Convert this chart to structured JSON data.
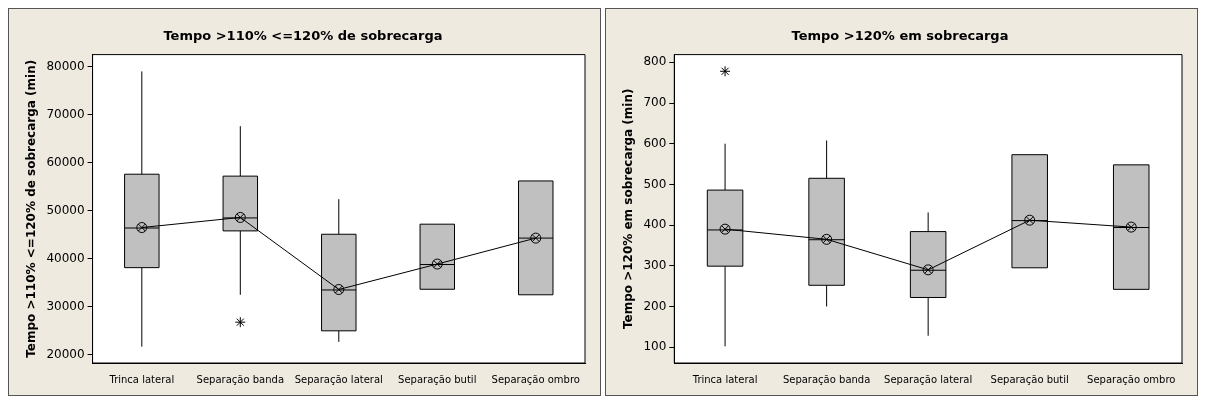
{
  "chart_data": [
    {
      "type": "box",
      "title": "Tempo >110% <=120% de sobrecarga",
      "ylabel": "Tempo >110% <=120% de sobrecarga (min)",
      "categories": [
        "Trinca lateral",
        "Separação banda",
        "Separação lateral",
        "Separação butil",
        "Separação ombro"
      ],
      "ylim": [
        18300,
        82500
      ],
      "yticks": [
        20000,
        30000,
        40000,
        50000,
        60000,
        70000,
        80000
      ],
      "series": [
        {
          "color": "#c0c0c0",
          "boxes": [
            {
              "low": 21700,
              "q1": 38150,
              "median": 46400,
              "q3": 57600,
              "high": 79000
            },
            {
              "low": 32500,
              "q1": 45800,
              "median": 48500,
              "q3": 57200,
              "high": 67600,
              "outliers": [
                26800
              ]
            },
            {
              "low": 22700,
              "q1": 25000,
              "median": 33500,
              "q3": 45100,
              "high": 52400
            },
            {
              "low": 33650,
              "q1": 33650,
              "median": 38800,
              "q3": 47200,
              "high": 47200
            },
            {
              "low": 32500,
              "q1": 32500,
              "median": 44300,
              "q3": 56200,
              "high": 56200
            }
          ]
        },
        {
          "type": "line",
          "color": "#000000",
          "marker": "circle",
          "values": [
            46500,
            48600,
            33600,
            38900,
            44300
          ]
        }
      ]
    },
    {
      "type": "box",
      "title": "Tempo >120% em sobrecarga",
      "ylabel": "Tempo >120% em sobrecarga (min)",
      "categories": [
        "Trinca lateral",
        "Separação banda",
        "Separação lateral",
        "Separação butil",
        "Separação ombro"
      ],
      "ylim": [
        61,
        819
      ],
      "yticks": [
        100,
        200,
        300,
        400,
        500,
        600,
        700,
        800
      ],
      "series": [
        {
          "color": "#c0c0c0",
          "boxes": [
            {
              "low": 102,
              "q1": 299,
              "median": 388,
              "q3": 486,
              "high": 600,
              "outliers": [
                778
              ]
            },
            {
              "low": 200,
              "q1": 252,
              "median": 364,
              "q3": 515,
              "high": 608
            },
            {
              "low": 128,
              "q1": 222,
              "median": 289,
              "q3": 384,
              "high": 431
            },
            {
              "low": 295,
              "q1": 295,
              "median": 411,
              "q3": 573,
              "high": 573
            },
            {
              "low": 242,
              "q1": 242,
              "median": 394,
              "q3": 548,
              "high": 548
            }
          ]
        },
        {
          "type": "line",
          "color": "#000000",
          "marker": "circle",
          "values": [
            390,
            365,
            290,
            412,
            395
          ]
        }
      ]
    }
  ]
}
